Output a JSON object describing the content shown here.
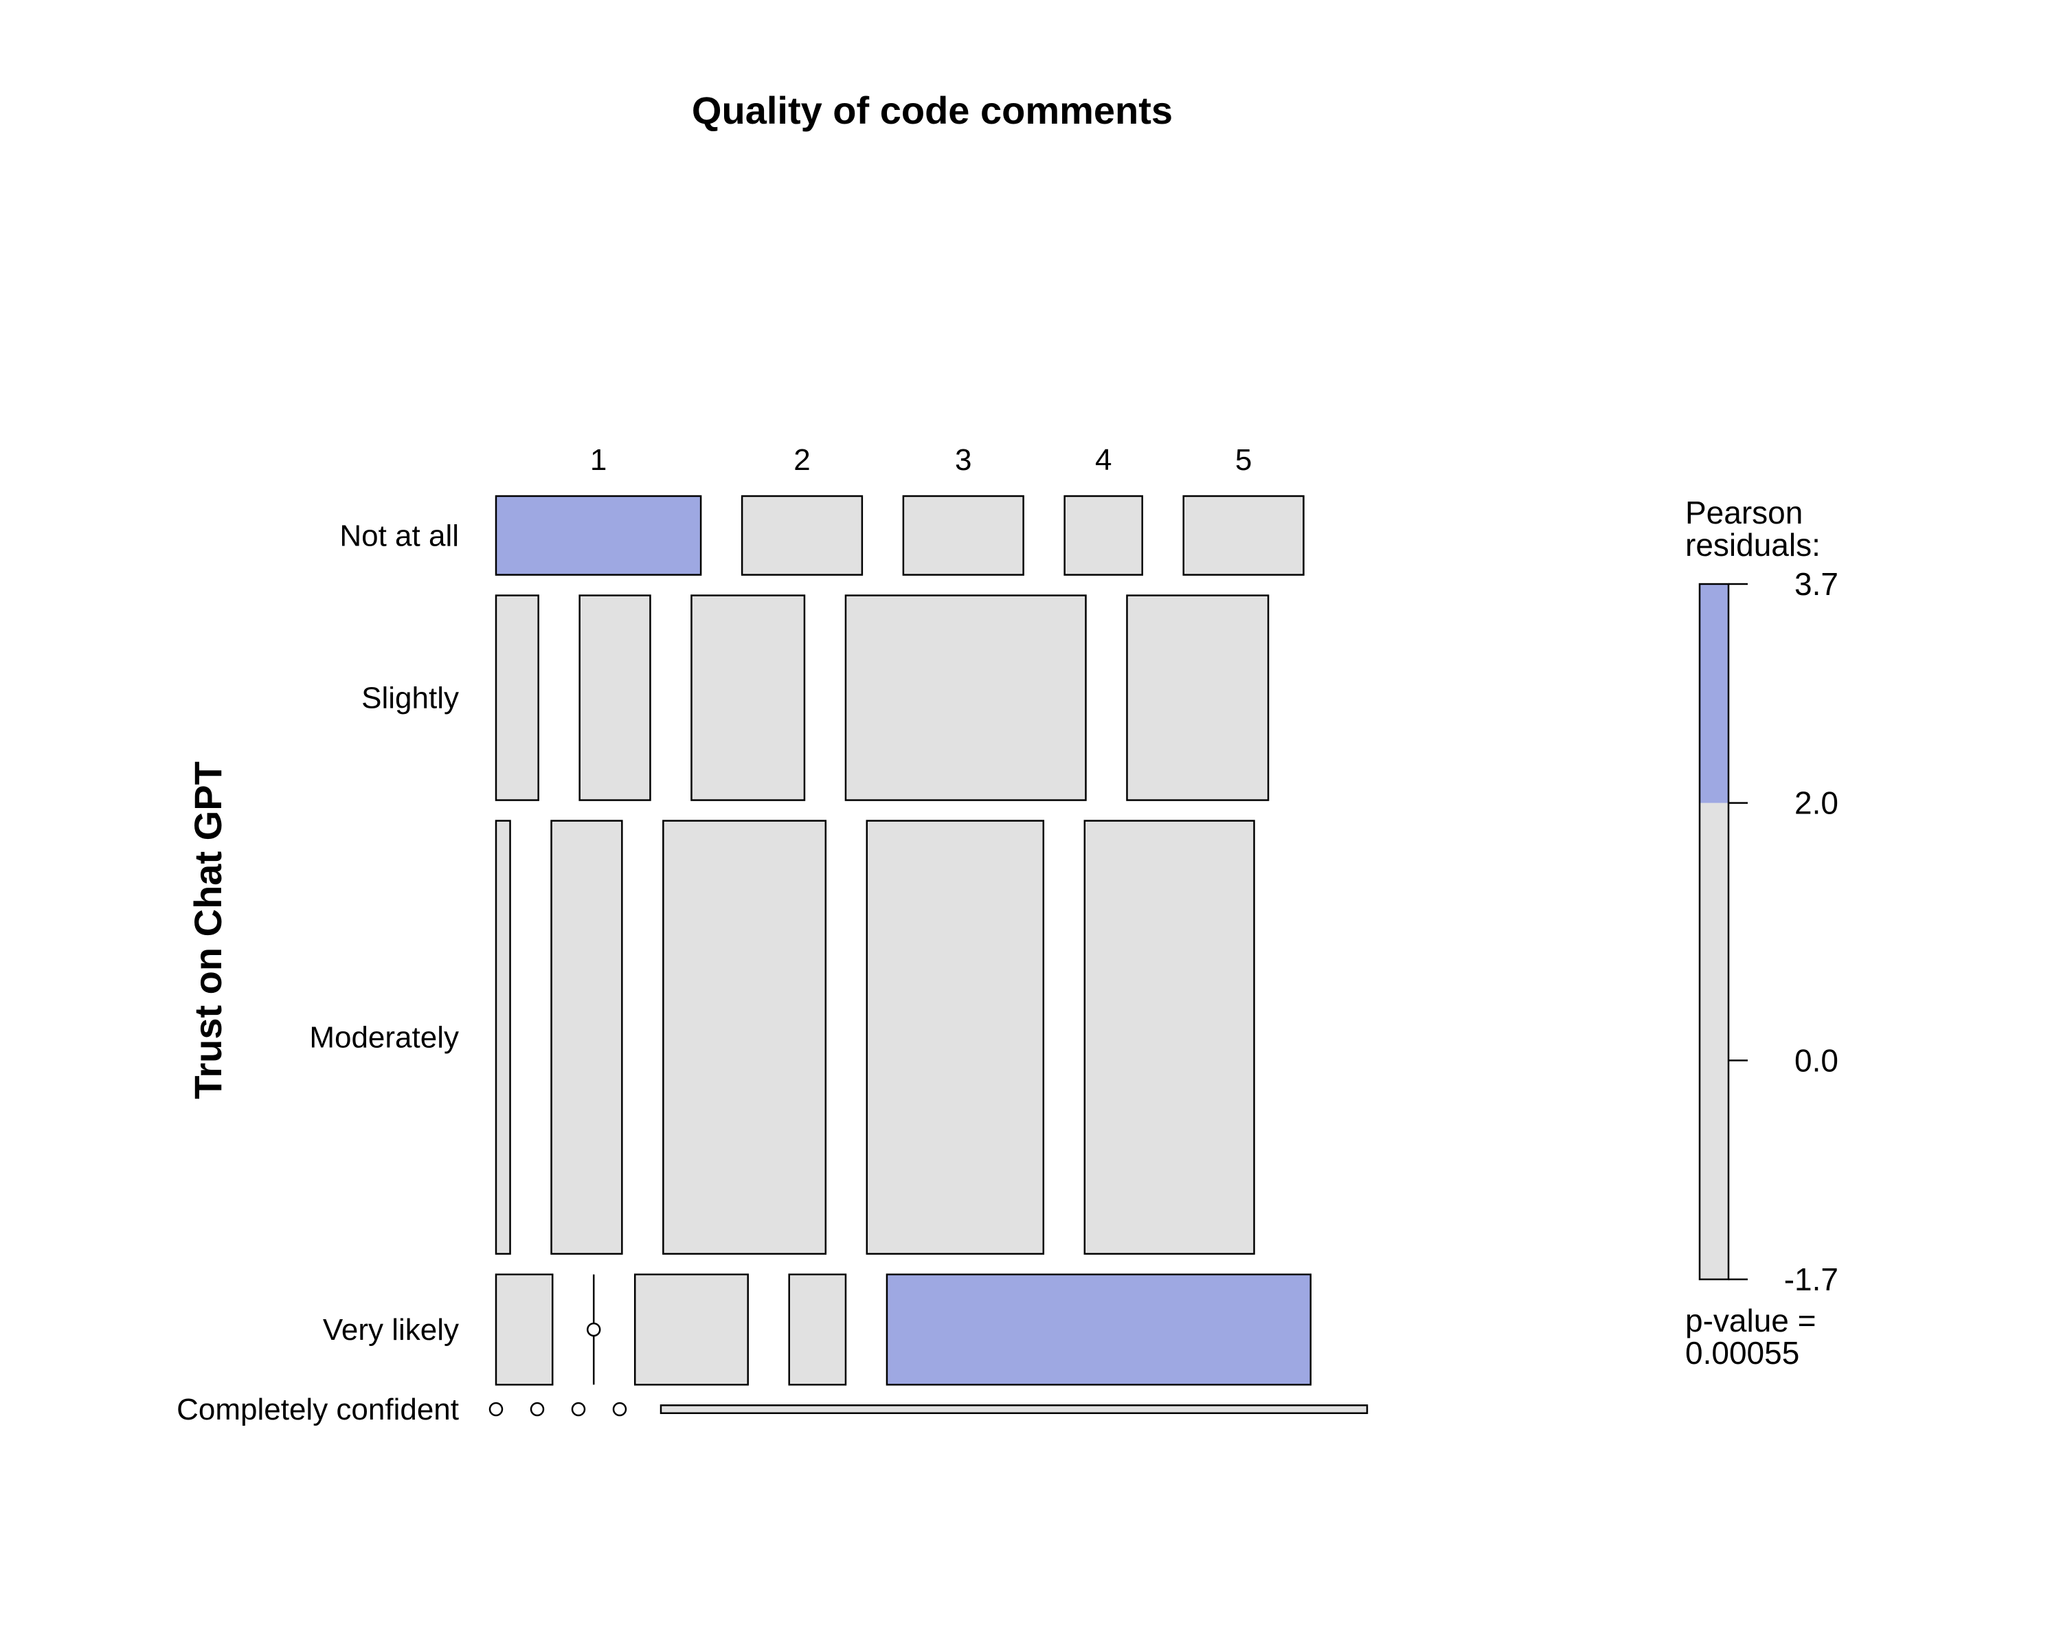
{
  "chart_data": {
    "type": "mosaic",
    "title": "Quality of code comments",
    "xlabel": "",
    "ylabel": "Trust on Chat GPT",
    "columns": [
      "1",
      "2",
      "3",
      "4",
      "5"
    ],
    "rows": [
      {
        "label": "Not at all",
        "widths": [
          0.29,
          0.17,
          0.17,
          0.11,
          0.17
        ],
        "residual_levels": [
          "high",
          "mid",
          "mid",
          "mid",
          "mid"
        ]
      },
      {
        "label": "Slightly",
        "widths": [
          0.06,
          0.1,
          0.16,
          0.34,
          0.2
        ],
        "residual_levels": [
          "mid",
          "mid",
          "mid",
          "mid",
          "mid"
        ]
      },
      {
        "label": "Moderately",
        "widths": [
          0.02,
          0.1,
          0.23,
          0.25,
          0.24
        ],
        "residual_levels": [
          "mid",
          "mid",
          "mid",
          "mid",
          "mid"
        ]
      },
      {
        "label": "Very likely",
        "widths": [
          0.08,
          0,
          0.16,
          0.08,
          0.6
        ],
        "residual_levels": [
          "mid",
          "mid",
          "mid",
          "mid",
          "high"
        ]
      },
      {
        "label": "Completely confident",
        "widths": [
          0,
          0,
          0,
          0,
          1
        ],
        "residual_levels": [
          "mid",
          "mid",
          "mid",
          "mid",
          "mid"
        ]
      }
    ],
    "row_heights": [
      0.1,
      0.26,
      0.55,
      0.14,
      0.01
    ],
    "legend": {
      "title_line1": "Pearson",
      "title_line2": "residuals:",
      "ticks": [
        "3.7",
        "2.0",
        "0.0",
        "-1.7"
      ],
      "tick_values": [
        3.7,
        2.0,
        0.0,
        -1.7
      ],
      "range": [
        -1.7,
        3.7
      ],
      "high_threshold": 2.0,
      "pvalue_label": "p-value =",
      "pvalue": "0.00055",
      "placement": "right"
    },
    "colors": {
      "mid": "#e1e1e1",
      "high": "#9ea8e2",
      "border": "#000000"
    }
  }
}
